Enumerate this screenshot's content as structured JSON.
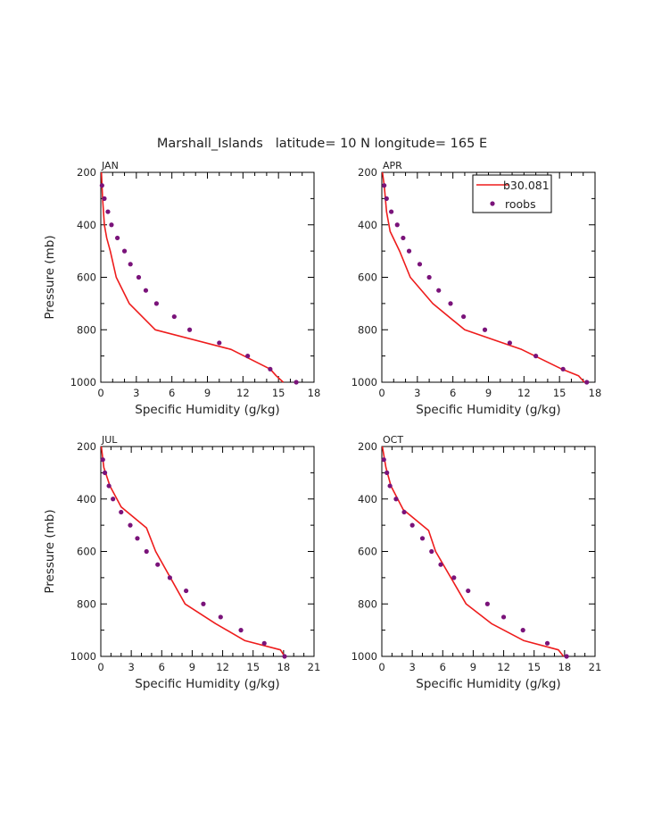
{
  "figure": {
    "title": "Marshall_Islands   latitude= 10 N longitude= 165 E",
    "colors": {
      "model": "#ee1c1c",
      "obs": "#7a137a",
      "axis": "#000000"
    }
  },
  "legend": {
    "model_label": "b30.081",
    "obs_label": "roobs",
    "location": "top-right of APR panel"
  },
  "chart_data": [
    {
      "type": "line",
      "panel": "JAN",
      "xlabel": "Specific Humidity (g/kg)",
      "ylabel": "Pressure (mb)",
      "xlim": [
        0,
        18
      ],
      "ylim": [
        1000,
        200
      ],
      "xticks": [
        "0",
        "3",
        "6",
        "9",
        "12",
        "15",
        "18"
      ],
      "yticks": [
        "200",
        "400",
        "600",
        "800",
        "1000"
      ],
      "series": [
        {
          "name": "b30.081",
          "style": "line",
          "x": [
            15.4,
            14.8,
            14.3,
            11.0,
            4.6,
            2.4,
            1.3,
            0.8,
            0.5,
            0.3,
            0.15,
            0.05
          ],
          "y": [
            1000,
            975,
            950,
            875,
            800,
            700,
            600,
            500,
            450,
            400,
            300,
            200
          ]
        },
        {
          "name": "roobs",
          "style": "points",
          "x": [
            16.5,
            14.3,
            12.4,
            10.0,
            7.5,
            6.2,
            4.7,
            3.8,
            3.2,
            2.5,
            2.0,
            1.4,
            0.9,
            0.6,
            0.3,
            0.1
          ],
          "y": [
            1000,
            950,
            900,
            850,
            800,
            750,
            700,
            650,
            600,
            550,
            500,
            450,
            400,
            350,
            300,
            250
          ]
        }
      ]
    },
    {
      "type": "line",
      "panel": "APR",
      "xlabel": "Specific Humidity (g/kg)",
      "ylabel": "",
      "xlim": [
        0,
        18
      ],
      "ylim": [
        1000,
        200
      ],
      "xticks": [
        "0",
        "3",
        "6",
        "9",
        "12",
        "15",
        "18"
      ],
      "yticks": [
        "200",
        "400",
        "600",
        "800",
        "1000"
      ],
      "series": [
        {
          "name": "b30.081",
          "style": "line",
          "x": [
            17.1,
            16.6,
            15.2,
            11.8,
            7.0,
            4.3,
            2.4,
            1.5,
            0.7,
            0.4,
            0.2,
            0.05
          ],
          "y": [
            1000,
            975,
            950,
            875,
            800,
            700,
            600,
            500,
            425,
            350,
            250,
            200
          ]
        },
        {
          "name": "roobs",
          "style": "points",
          "x": [
            17.3,
            15.3,
            13.0,
            10.8,
            8.7,
            6.9,
            5.8,
            4.8,
            4.0,
            3.2,
            2.3,
            1.8,
            1.3,
            0.8,
            0.4,
            0.2
          ],
          "y": [
            1000,
            950,
            900,
            850,
            800,
            750,
            700,
            650,
            600,
            550,
            500,
            450,
            400,
            350,
            300,
            250
          ]
        }
      ]
    },
    {
      "type": "line",
      "panel": "JUL",
      "xlabel": "Specific Humidity (g/kg)",
      "ylabel": "Pressure (mb)",
      "xlim": [
        0,
        21
      ],
      "ylim": [
        1000,
        200
      ],
      "xticks": [
        "0",
        "3",
        "6",
        "9",
        "12",
        "15",
        "18",
        "21"
      ],
      "yticks": [
        "200",
        "400",
        "600",
        "800",
        "1000"
      ],
      "series": [
        {
          "name": "b30.081",
          "style": "line",
          "x": [
            18.1,
            17.7,
            14.2,
            11.3,
            8.3,
            5.4,
            4.5,
            2.0,
            0.9,
            0.3,
            0.05
          ],
          "y": [
            1000,
            975,
            940,
            875,
            800,
            600,
            510,
            430,
            350,
            280,
            200
          ]
        },
        {
          "name": "roobs",
          "style": "points",
          "x": [
            18.1,
            16.1,
            13.8,
            11.8,
            10.1,
            8.4,
            6.8,
            5.6,
            4.5,
            3.6,
            2.9,
            2.0,
            1.2,
            0.8,
            0.4,
            0.2
          ],
          "y": [
            1000,
            950,
            900,
            850,
            800,
            750,
            700,
            650,
            600,
            550,
            500,
            450,
            400,
            350,
            300,
            250
          ]
        }
      ]
    },
    {
      "type": "line",
      "panel": "OCT",
      "xlabel": "Specific Humidity (g/kg)",
      "ylabel": "",
      "xlim": [
        0,
        21
      ],
      "ylim": [
        1000,
        200
      ],
      "xticks": [
        "0",
        "3",
        "6",
        "9",
        "12",
        "15",
        "18",
        "21"
      ],
      "yticks": [
        "200",
        "400",
        "600",
        "800",
        "1000"
      ],
      "series": [
        {
          "name": "b30.081",
          "style": "line",
          "x": [
            17.9,
            17.4,
            14.0,
            10.8,
            8.3,
            5.3,
            4.6,
            2.1,
            0.9,
            0.4,
            0.05
          ],
          "y": [
            1000,
            975,
            940,
            875,
            800,
            600,
            520,
            440,
            350,
            280,
            200
          ]
        },
        {
          "name": "roobs",
          "style": "points",
          "x": [
            18.2,
            16.3,
            13.9,
            12.0,
            10.4,
            8.5,
            7.1,
            5.8,
            4.9,
            4.0,
            3.0,
            2.2,
            1.4,
            0.8,
            0.5,
            0.2
          ],
          "y": [
            1000,
            950,
            900,
            850,
            800,
            750,
            700,
            650,
            600,
            550,
            500,
            450,
            400,
            350,
            300,
            250
          ]
        }
      ]
    }
  ]
}
